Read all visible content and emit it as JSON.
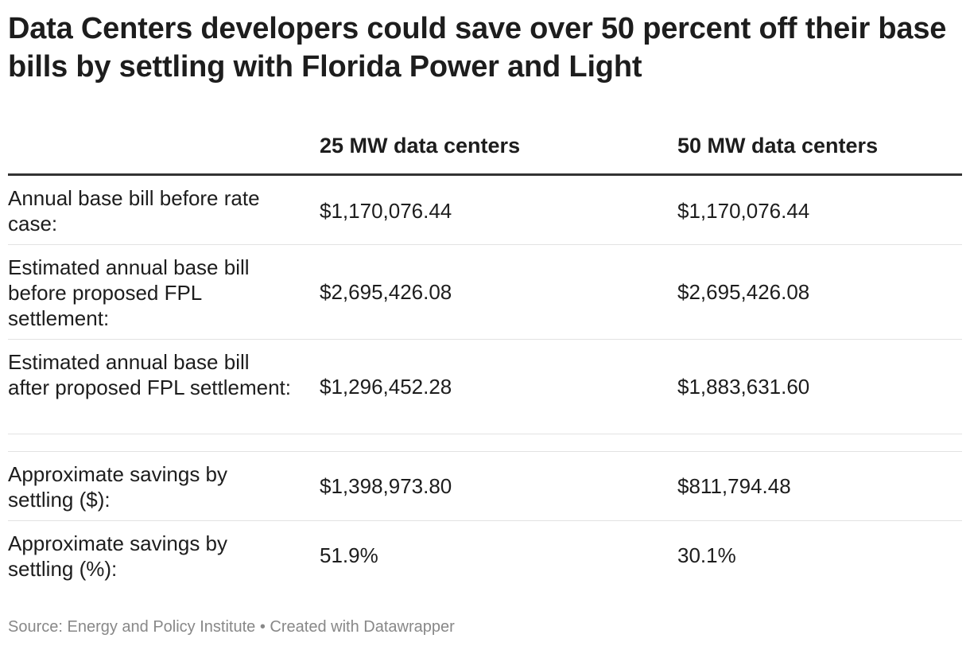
{
  "title": "Data Centers developers could save over 50 percent off their base bills by settling with Florida Power and Light",
  "table": {
    "columns": [
      "",
      "25 MW data centers",
      "50 MW data centers"
    ],
    "rows": [
      {
        "label": "Annual base bill before rate case:",
        "v25": "$1,170,076.44",
        "v50": "$1,170,076.44"
      },
      {
        "label": "Estimated annual base bill before proposed FPL settlement:",
        "v25": "$2,695,426.08",
        "v50": "$2,695,426.08"
      },
      {
        "label": "Estimated annual base bill after proposed FPL settlement:",
        "v25": "$1,296,452.28",
        "v50": "$1,883,631.60"
      },
      {
        "label": "",
        "v25": "",
        "v50": ""
      },
      {
        "label": "Approximate savings by settling ($):",
        "v25": "$1,398,973.80",
        "v50": "$811,794.48"
      },
      {
        "label": "Approximate savings by settling (%):",
        "v25": "51.9%",
        "v50": "30.1%"
      }
    ]
  },
  "footer": {
    "source": "Source: Energy and Policy Institute",
    "separator": "•",
    "credit": "Created with Datawrapper"
  }
}
